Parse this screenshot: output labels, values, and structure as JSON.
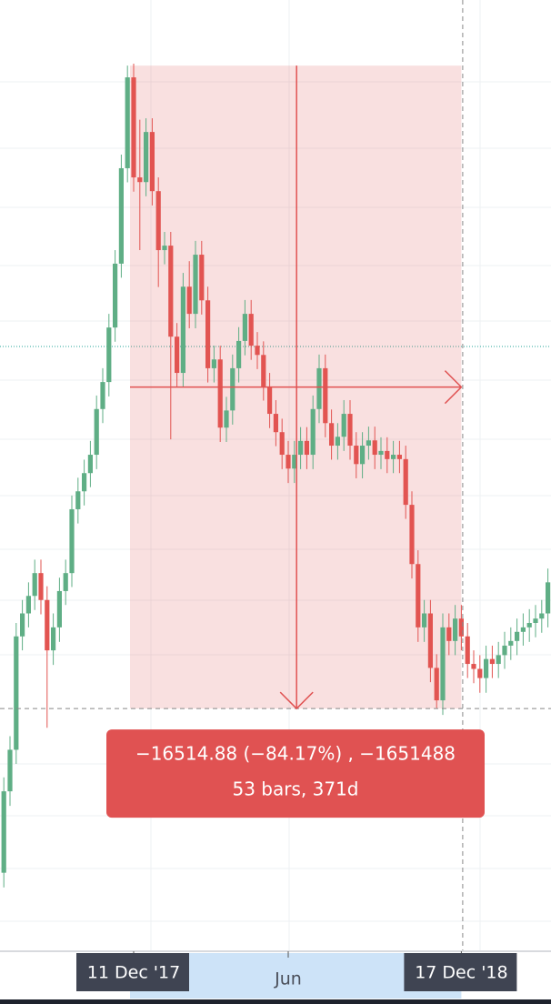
{
  "chart_data": {
    "type": "candlestick",
    "log_scale": true,
    "ylim": [
      1553,
      23680
    ],
    "up_color": "#5fae85",
    "down_color": "#e25451",
    "open": [
      1940,
      2450,
      2760,
      3820,
      4080,
      4290,
      4580,
      4240,
      3670,
      3920,
      4350,
      4580,
      5500,
      5790,
      6100,
      6430,
      7330,
      7920,
      9260,
      11120,
      14620,
      18970,
      14240,
      14050,
      16220,
      13690,
      11560,
      11710,
      9020,
      8130,
      10410,
      9630,
      11410,
      10010,
      8240,
      8450,
      6950,
      7300,
      8240,
      8910,
      9630,
      8790,
      8560,
      7820,
      7230,
      6860,
      6430,
      6180,
      6430,
      6690,
      6430,
      7330,
      8240,
      7040,
      6600,
      6770,
      7230,
      6600,
      6260,
      6600,
      6700,
      6430,
      6500,
      6350,
      6430,
      6350,
      5570,
      4700,
      3920,
      4080,
      3490,
      3180,
      3920,
      3770,
      4020,
      3820,
      3530,
      3480,
      3390,
      3580,
      3530,
      3620,
      3720,
      3770,
      3870,
      3920,
      3970,
      4020,
      4080
    ],
    "high": [
      2550,
      2870,
      3970,
      4240,
      4460,
      4760,
      4760,
      4410,
      4080,
      4520,
      4760,
      5720,
      6020,
      6340,
      6690,
      7620,
      8240,
      9630,
      11560,
      15200,
      19620,
      19730,
      16800,
      16870,
      16870,
      14240,
      12180,
      12180,
      9380,
      10830,
      11200,
      11870,
      11870,
      10410,
      8790,
      8790,
      7590,
      8570,
      9270,
      10020,
      10020,
      9140,
      8900,
      8130,
      7520,
      7130,
      6690,
      6690,
      6960,
      6960,
      7620,
      8570,
      8570,
      7320,
      7040,
      7520,
      7520,
      6860,
      6860,
      6970,
      6970,
      6760,
      6760,
      6690,
      6690,
      6600,
      5790,
      4890,
      4240,
      4240,
      3630,
      4080,
      4080,
      4180,
      4180,
      3970,
      3670,
      3620,
      3720,
      3720,
      3760,
      3870,
      3920,
      4020,
      4080,
      4130,
      4180,
      4240,
      4640
    ],
    "low": [
      1860,
      2350,
      2650,
      3670,
      3920,
      4120,
      4070,
      2940,
      3520,
      3760,
      4180,
      4400,
      5280,
      5560,
      5860,
      6170,
      7040,
      7600,
      8890,
      10680,
      14040,
      13670,
      11560,
      13490,
      13140,
      10400,
      11100,
      6720,
      7800,
      7800,
      9240,
      9240,
      9610,
      7910,
      7910,
      6670,
      6670,
      7010,
      7910,
      8550,
      8440,
      8220,
      7510,
      6940,
      6590,
      6170,
      5930,
      5930,
      6170,
      6170,
      6170,
      7040,
      6760,
      6340,
      6340,
      6500,
      6340,
      6010,
      6010,
      6340,
      6170,
      6170,
      6100,
      6100,
      6100,
      5350,
      4510,
      3760,
      3760,
      3350,
      3110,
      3050,
      3620,
      3620,
      3670,
      3390,
      3340,
      3250,
      3250,
      3390,
      3390,
      3480,
      3570,
      3620,
      3720,
      3760,
      3810,
      3860,
      3920
    ],
    "close": [
      2450,
      2760,
      3820,
      4080,
      4290,
      4580,
      4240,
      3670,
      3920,
      4350,
      4580,
      5500,
      5790,
      6100,
      6430,
      7330,
      7920,
      9260,
      11120,
      14620,
      18970,
      14240,
      14050,
      16220,
      13690,
      11560,
      11710,
      9020,
      8130,
      10410,
      9630,
      11410,
      10010,
      8240,
      8450,
      6950,
      7300,
      8240,
      8910,
      9630,
      8790,
      8560,
      7820,
      7230,
      6860,
      6430,
      6180,
      6430,
      6690,
      6430,
      7330,
      8240,
      7040,
      6600,
      6770,
      7230,
      6600,
      6260,
      6600,
      6700,
      6430,
      6500,
      6350,
      6430,
      6350,
      5570,
      4700,
      3920,
      4080,
      3490,
      3180,
      3920,
      3770,
      4020,
      3820,
      3530,
      3480,
      3390,
      3580,
      3530,
      3620,
      3720,
      3770,
      3870,
      3920,
      3970,
      4020,
      4080,
      4460
    ],
    "xticks": [
      {
        "value": 21,
        "label": "11 Dec '17"
      },
      {
        "value": 46,
        "label": "Jun"
      },
      {
        "value": 74,
        "label": "17 Dec '18"
      }
    ],
    "price_line": 8770,
    "measure": {
      "bars": [
        21,
        74
      ],
      "price_range": [
        3106,
        19620
      ],
      "color": "#e05252",
      "label": [
        "−16514.88 (−84.17%) , −1651488",
        "53 bars, 371d"
      ]
    }
  }
}
